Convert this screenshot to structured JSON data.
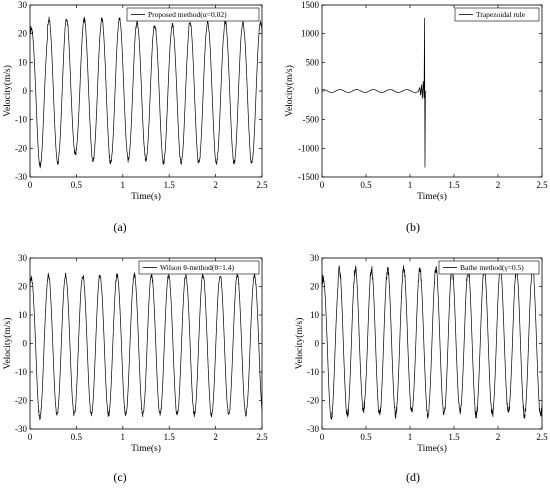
{
  "chart_data": [
    {
      "id": "a",
      "type": "line",
      "panel_label": "(a)",
      "xlabel": "Time(s)",
      "ylabel": "Velocity(m/s)",
      "xlim": [
        0,
        2.5
      ],
      "ylim": [
        -30,
        30
      ],
      "x_ticks": [
        0,
        0.5,
        1,
        1.5,
        2,
        2.5
      ],
      "x_tick_labels": [
        "0",
        "0.5",
        "1",
        "1.5",
        "2",
        "2.5"
      ],
      "y_ticks": [
        -30,
        -20,
        -10,
        0,
        10,
        20,
        30
      ],
      "y_tick_labels": [
        "-30",
        "-20",
        "-10",
        "0",
        "10",
        "20",
        "30"
      ],
      "grid": false,
      "legend_position": "top-right",
      "series": [
        {
          "name": "Proposed method(α=0.02)",
          "signal": {
            "period": 0.19,
            "start": 0,
            "end": 2.5,
            "wiggle": 0.3,
            "peaks": [
              22,
              25,
              25,
              25,
              25,
              25,
              24,
              23,
              23,
              24,
              24,
              24,
              24,
              24
            ],
            "troughs": [
              -26,
              -25,
              -22,
              -24,
              -25,
              -24,
              -24,
              -25,
              -25,
              -25,
              -25,
              -25,
              -25,
              -25
            ]
          }
        }
      ]
    },
    {
      "id": "b",
      "type": "line",
      "panel_label": "(b)",
      "xlabel": "Time(s)",
      "ylabel": "Velocity(m/s)",
      "xlim": [
        0,
        2.5
      ],
      "ylim": [
        -1500,
        1500
      ],
      "x_ticks": [
        0,
        0.5,
        1,
        1.5,
        2,
        2.5
      ],
      "x_tick_labels": [
        "0",
        "0.5",
        "1",
        "1.5",
        "2",
        "2.5"
      ],
      "y_ticks": [
        -1500,
        -1000,
        -500,
        0,
        500,
        1000,
        1500
      ],
      "y_tick_labels": [
        "-1500",
        "-1000",
        "-500",
        "0",
        "500",
        "1000",
        "1500"
      ],
      "grid": false,
      "legend_position": "top-right",
      "series": [
        {
          "name": "Trapezoidal rule",
          "signal": {
            "period": 0.19,
            "start": 0,
            "end": 1.1,
            "wiggle": 0,
            "peaks": [
              25,
              25,
              25,
              25,
              25,
              25
            ],
            "troughs": [
              -25,
              -25,
              -25,
              -25,
              -25,
              -25
            ]
          },
          "tail_points": [
            [
              1.1,
              20
            ],
            [
              1.11,
              60
            ],
            [
              1.12,
              -70
            ],
            [
              1.13,
              110
            ],
            [
              1.14,
              -130
            ],
            [
              1.15,
              170
            ],
            [
              1.16,
              -120
            ],
            [
              1.165,
              1270
            ],
            [
              1.17,
              -1330
            ],
            [
              1.175,
              0
            ]
          ]
        }
      ]
    },
    {
      "id": "c",
      "type": "line",
      "panel_label": "(c)",
      "xlabel": "Time(s)",
      "ylabel": "Velocity(m/s)",
      "xlim": [
        0,
        2.5
      ],
      "ylim": [
        -30,
        30
      ],
      "x_ticks": [
        0,
        0.5,
        1,
        1.5,
        2,
        2.5
      ],
      "x_tick_labels": [
        "0",
        "0.5",
        "1",
        "1.5",
        "2",
        "2.5"
      ],
      "y_ticks": [
        -30,
        -20,
        -10,
        0,
        10,
        20,
        30
      ],
      "y_tick_labels": [
        "-30",
        "-20",
        "-10",
        "0",
        "10",
        "20",
        "30"
      ],
      "grid": false,
      "legend_position": "top-right",
      "series": [
        {
          "name": "Wilson θ-method(θ=1.4)",
          "signal": {
            "period": 0.185,
            "start": 0,
            "end": 2.5,
            "wiggle": 0.3,
            "peaks": [
              23,
              24,
              24,
              24,
              24,
              24,
              24,
              24,
              24,
              24,
              24,
              24,
              24,
              24
            ],
            "troughs": [
              -26,
              -25,
              -25,
              -25,
              -25,
              -25,
              -25,
              -25,
              -25,
              -25,
              -25,
              -25,
              -25,
              -25
            ]
          }
        }
      ]
    },
    {
      "id": "d",
      "type": "line",
      "panel_label": "(d)",
      "xlabel": "Time(s)",
      "ylabel": "Velocity(m/s)",
      "xlim": [
        0,
        2.5
      ],
      "ylim": [
        -30,
        30
      ],
      "x_ticks": [
        0,
        0.5,
        1,
        1.5,
        2,
        2.5
      ],
      "x_tick_labels": [
        "0",
        "0.5",
        "1",
        "1.5",
        "2",
        "2.5"
      ],
      "y_ticks": [
        -30,
        -20,
        -10,
        0,
        10,
        20,
        30
      ],
      "y_tick_labels": [
        "-30",
        "-20",
        "-10",
        "0",
        "10",
        "20",
        "30"
      ],
      "grid": false,
      "legend_position": "top-right",
      "series": [
        {
          "name": "Bathe method(γ=0.5)",
          "signal": {
            "period": 0.183,
            "start": 0,
            "end": 2.5,
            "wiggle": 0.5,
            "peaks": [
              23,
              26,
              26,
              26,
              26,
              26,
              26,
              26,
              26,
              26,
              26,
              26,
              26,
              26
            ],
            "troughs": [
              -26,
              -25,
              -23,
              -25,
              -25,
              -24,
              -25,
              -25,
              -24,
              -25,
              -25,
              -24,
              -25,
              -25
            ]
          }
        }
      ]
    }
  ]
}
